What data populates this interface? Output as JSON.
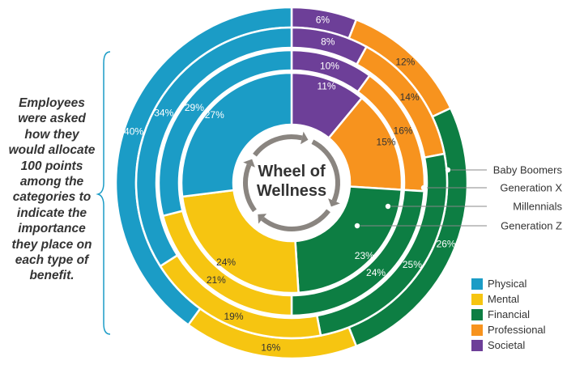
{
  "side_note": "Employees were asked how they would allocate 100 points among the categories to indicate the importance they place on each type of benefit.",
  "chart_data": {
    "type": "donut",
    "title": "Wheel of Wellness",
    "title_lines": [
      "Wheel of",
      "Wellness"
    ],
    "categories": [
      "Physical",
      "Mental",
      "Financial",
      "Professional",
      "Societal"
    ],
    "colors": {
      "Physical": "#1b9cc6",
      "Mental": "#f6c511",
      "Financial": "#0d7e43",
      "Professional": "#f7931e",
      "Societal": "#6d3f98"
    },
    "series": [
      {
        "name": "Baby Boomers",
        "values": [
          40,
          16,
          26,
          12,
          6
        ]
      },
      {
        "name": "Generation X",
        "values": [
          34,
          19,
          25,
          14,
          8
        ]
      },
      {
        "name": "Millennials",
        "values": [
          29,
          21,
          24,
          16,
          10
        ]
      },
      {
        "name": "Generation Z",
        "values": [
          27,
          24,
          23,
          15,
          11
        ]
      }
    ],
    "value_suffix": "%",
    "legend": [
      "Physical",
      "Mental",
      "Financial",
      "Professional",
      "Societal"
    ],
    "legend_position": "bottom-right",
    "ring_labels_position": "right"
  }
}
